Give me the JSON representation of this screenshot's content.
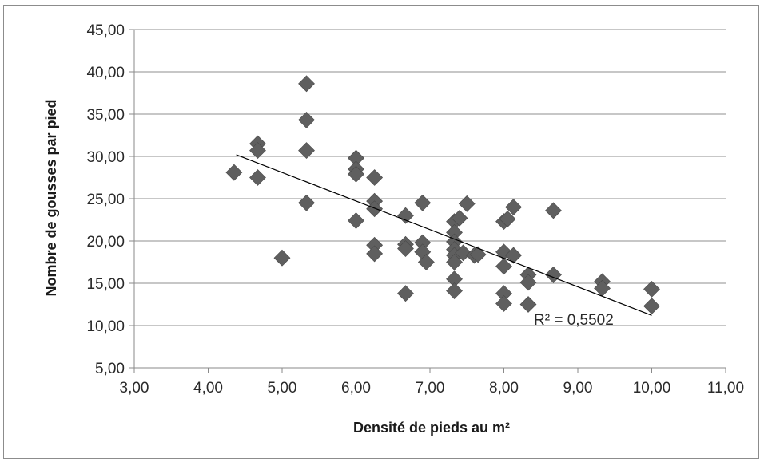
{
  "chart_data": {
    "type": "scatter",
    "xlabel": "Densité de pieds au m²",
    "ylabel": "Nombre de gousses par pied",
    "xlim": [
      3,
      11
    ],
    "ylim": [
      5,
      45
    ],
    "x_ticks": [
      3,
      4,
      5,
      6,
      7,
      8,
      9,
      10,
      11
    ],
    "y_ticks": [
      5,
      10,
      15,
      20,
      25,
      30,
      35,
      40,
      45
    ],
    "x_tick_labels": [
      "3,00",
      "4,00",
      "5,00",
      "6,00",
      "7,00",
      "8,00",
      "9,00",
      "10,00",
      "11,00"
    ],
    "y_tick_labels": [
      "5,00",
      "10,00",
      "15,00",
      "20,00",
      "25,00",
      "30,00",
      "35,00",
      "40,00",
      "45,00"
    ],
    "grid": "horizontal",
    "marker": "diamond",
    "marker_color": "#5f5f5f",
    "trendline": {
      "type": "linear",
      "x": [
        4.38,
        10.0
      ],
      "y": [
        30.2,
        11.2
      ],
      "color": "#000000"
    },
    "annotation": "R² = 0,5502",
    "points": [
      [
        4.35,
        28.1
      ],
      [
        4.67,
        31.5
      ],
      [
        4.67,
        30.7
      ],
      [
        4.67,
        27.5
      ],
      [
        5.0,
        18.0
      ],
      [
        5.33,
        38.6
      ],
      [
        5.33,
        34.3
      ],
      [
        5.33,
        30.7
      ],
      [
        5.33,
        24.5
      ],
      [
        6.0,
        29.8
      ],
      [
        6.0,
        28.5
      ],
      [
        6.0,
        27.9
      ],
      [
        6.0,
        22.4
      ],
      [
        6.25,
        27.5
      ],
      [
        6.25,
        24.7
      ],
      [
        6.25,
        23.8
      ],
      [
        6.25,
        19.5
      ],
      [
        6.25,
        18.5
      ],
      [
        6.67,
        23.0
      ],
      [
        6.67,
        19.6
      ],
      [
        6.67,
        19.1
      ],
      [
        6.67,
        13.8
      ],
      [
        6.9,
        24.5
      ],
      [
        6.9,
        19.8
      ],
      [
        6.9,
        18.7
      ],
      [
        6.95,
        17.5
      ],
      [
        7.33,
        22.3
      ],
      [
        7.33,
        21.0
      ],
      [
        7.33,
        19.9
      ],
      [
        7.33,
        19.0
      ],
      [
        7.33,
        18.3
      ],
      [
        7.33,
        17.5
      ],
      [
        7.33,
        15.5
      ],
      [
        7.33,
        14.1
      ],
      [
        7.4,
        22.7
      ],
      [
        7.45,
        18.6
      ],
      [
        7.5,
        24.4
      ],
      [
        7.6,
        18.3
      ],
      [
        7.65,
        18.4
      ],
      [
        8.0,
        22.3
      ],
      [
        8.0,
        18.7
      ],
      [
        8.0,
        17.0
      ],
      [
        8.0,
        13.8
      ],
      [
        8.0,
        12.6
      ],
      [
        8.05,
        22.6
      ],
      [
        8.13,
        24.0
      ],
      [
        8.13,
        18.3
      ],
      [
        8.33,
        16.0
      ],
      [
        8.33,
        15.1
      ],
      [
        8.33,
        12.5
      ],
      [
        8.67,
        23.6
      ],
      [
        8.67,
        16.0
      ],
      [
        9.33,
        15.2
      ],
      [
        9.33,
        14.4
      ],
      [
        10.0,
        14.3
      ],
      [
        10.0,
        12.3
      ]
    ]
  }
}
